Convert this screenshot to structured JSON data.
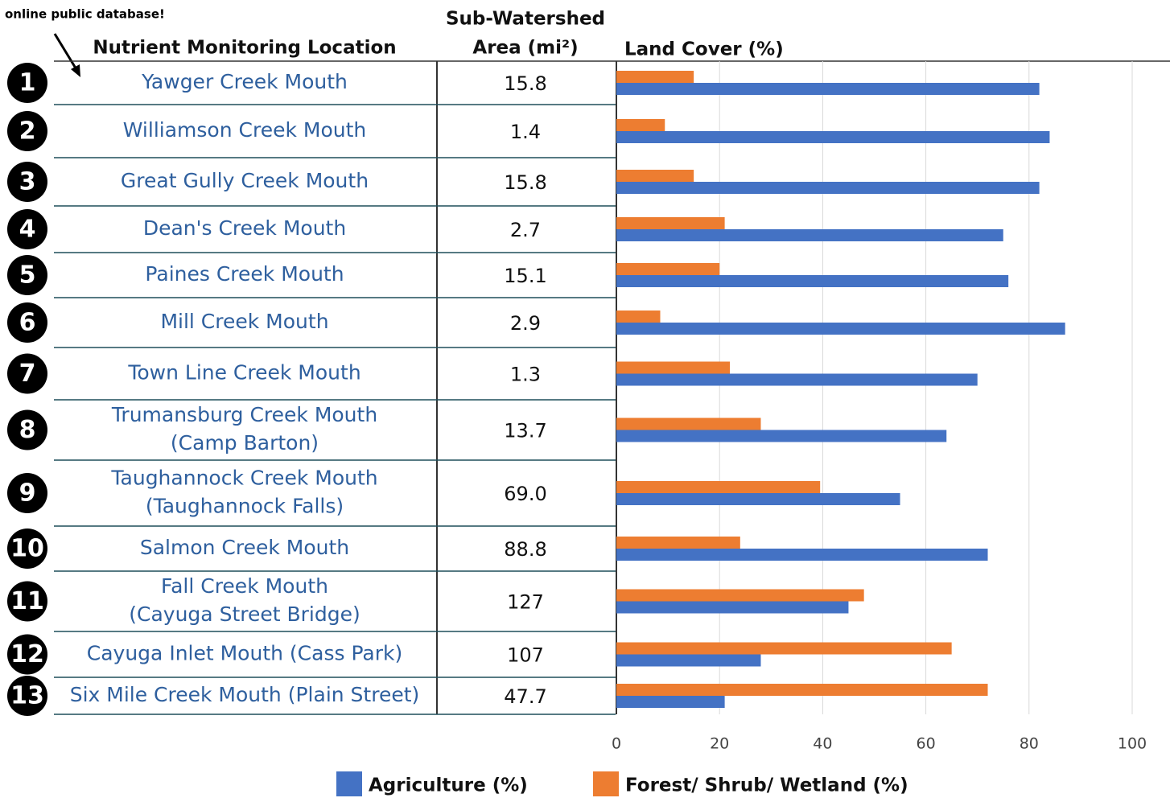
{
  "note": "online public database!",
  "table": {
    "location_header": "Nutrient Monitoring Location",
    "area_header": [
      "Sub-Watershed",
      "Area (mi²)"
    ],
    "rows": [
      {
        "number": "1",
        "location": [
          "Yawger Creek Mouth"
        ],
        "area": "15.8"
      },
      {
        "number": "2",
        "location": [
          "Williamson Creek Mouth"
        ],
        "area": "1.4"
      },
      {
        "number": "3",
        "location": [
          "Great Gully Creek Mouth"
        ],
        "area": "15.8"
      },
      {
        "number": "4",
        "location": [
          "Dean's Creek Mouth"
        ],
        "area": "2.7"
      },
      {
        "number": "5",
        "location": [
          "Paines Creek Mouth"
        ],
        "area": "15.1"
      },
      {
        "number": "6",
        "location": [
          "Mill Creek Mouth"
        ],
        "area": "2.9"
      },
      {
        "number": "7",
        "location": [
          "Town Line Creek Mouth"
        ],
        "area": "1.3"
      },
      {
        "number": "8",
        "location": [
          "Trumansburg Creek Mouth",
          "(Camp Barton)"
        ],
        "area": "13.7"
      },
      {
        "number": "9",
        "location": [
          "Taughannock Creek Mouth",
          "(Taughannock Falls)"
        ],
        "area": "69.0"
      },
      {
        "number": "10",
        "location": [
          "Salmon Creek Mouth"
        ],
        "area": "88.8"
      },
      {
        "number": "11",
        "location": [
          "Fall Creek Mouth",
          "(Cayuga Street Bridge)"
        ],
        "area": "127"
      },
      {
        "number": "12",
        "location": [
          "Cayuga Inlet Mouth (Cass Park)"
        ],
        "area": "107"
      },
      {
        "number": "13",
        "location": [
          "Six Mile Creek Mouth (Plain Street)"
        ],
        "area": "47.7"
      }
    ]
  },
  "chart_data": {
    "type": "bar",
    "orientation": "horizontal",
    "title": "Land Cover (%)",
    "series": [
      {
        "name": "Agriculture (%)",
        "color": "#4472c4",
        "values": [
          82,
          84,
          82,
          75,
          76,
          87,
          70,
          64,
          55,
          72,
          45,
          28,
          21
        ]
      },
      {
        "name": "Forest/ Shrub/ Wetland (%)",
        "color": "#ed7d31",
        "values": [
          15,
          9.4,
          15,
          21,
          20,
          8.5,
          22,
          28,
          39.5,
          24,
          48,
          65,
          72
        ]
      }
    ],
    "xlim": [
      0,
      100
    ],
    "xticks": [
      0,
      20,
      40,
      60,
      80,
      100
    ],
    "grid": true
  }
}
